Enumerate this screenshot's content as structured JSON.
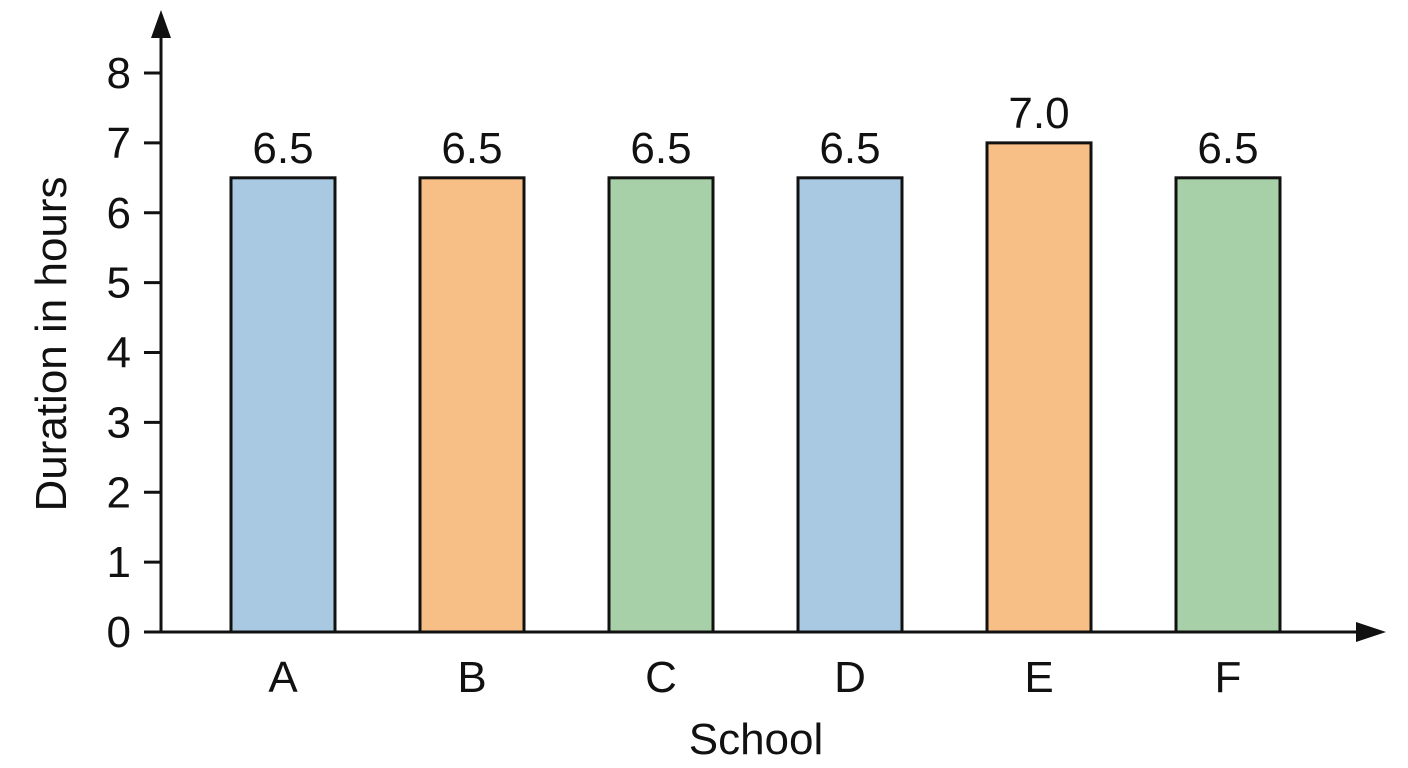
{
  "chart_data": {
    "type": "bar",
    "title": "",
    "xlabel": "School",
    "ylabel": "Duration in hours",
    "categories": [
      "A",
      "B",
      "C",
      "D",
      "E",
      "F"
    ],
    "values": [
      6.5,
      6.5,
      6.5,
      6.5,
      7.0,
      6.5
    ],
    "data_labels": [
      "6.5",
      "6.5",
      "6.5",
      "6.5",
      "7.0",
      "6.5"
    ],
    "ylim": [
      0,
      8
    ],
    "yticks": [
      0,
      1,
      2,
      3,
      4,
      5,
      6,
      7,
      8
    ],
    "ytick_labels": [
      "0",
      "1",
      "2",
      "3",
      "4",
      "5",
      "6",
      "7",
      "8"
    ],
    "grid": false,
    "legend": "none",
    "bar_colors": [
      "#a9c9e2",
      "#f7be86",
      "#a8d0a8",
      "#a9c9e2",
      "#f7be86",
      "#a8d0a8"
    ],
    "bar_edge_color": "#111111",
    "axis_color": "#111111"
  }
}
